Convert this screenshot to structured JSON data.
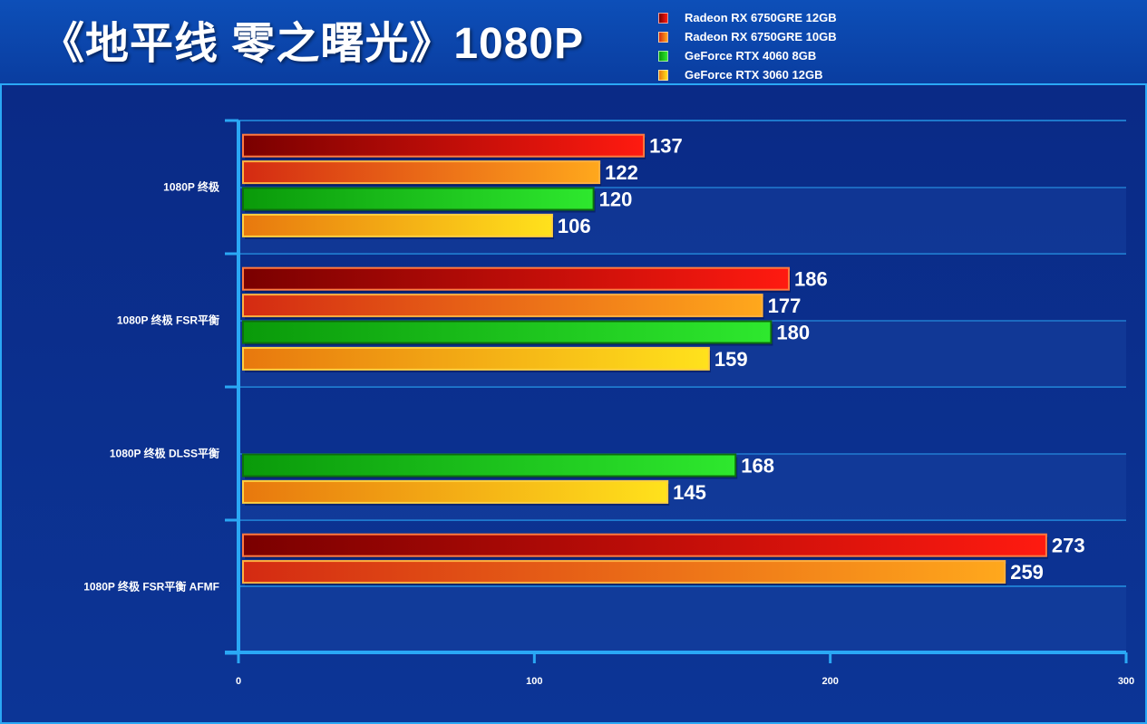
{
  "title": "《地平线 零之曙光》1080P",
  "chart_data": {
    "type": "bar",
    "orientation": "horizontal",
    "title": "《地平线 零之曙光》1080P",
    "xlabel": "",
    "ylabel": "",
    "xlim": [
      0,
      300
    ],
    "xticks": [
      0,
      100,
      200,
      300
    ],
    "grid": true,
    "legend_position": "top-right",
    "categories": [
      "1080P 终极",
      "1080P 终极 FSR平衡",
      "1080P 终极 DLSS平衡",
      "1080P 终极 FSR平衡 AFMF"
    ],
    "series": [
      {
        "name": "Radeon RX 6750GRE 12GB",
        "values": [
          137,
          186,
          null,
          273
        ],
        "color": "#e01010",
        "gradient": [
          "#7a0000",
          "#ff1a10"
        ],
        "border": "#ff7a40"
      },
      {
        "name": "Radeon RX 6750GRE 10GB",
        "values": [
          122,
          177,
          null,
          259
        ],
        "color": "#f07a18",
        "gradient": [
          "#d42a12",
          "#ffa81c"
        ],
        "border": "#ffb040"
      },
      {
        "name": "GeForce RTX 4060 8GB",
        "values": [
          120,
          180,
          168,
          null
        ],
        "color": "#18c418",
        "gradient": [
          "#0a9a0a",
          "#2ee82e"
        ],
        "border": "#0d6e0d"
      },
      {
        "name": "GeForce RTX 3060 12GB",
        "values": [
          106,
          159,
          145,
          null
        ],
        "color": "#f8c418",
        "gradient": [
          "#e8780e",
          "#ffe21c"
        ],
        "border": "#ffcf40"
      }
    ]
  }
}
